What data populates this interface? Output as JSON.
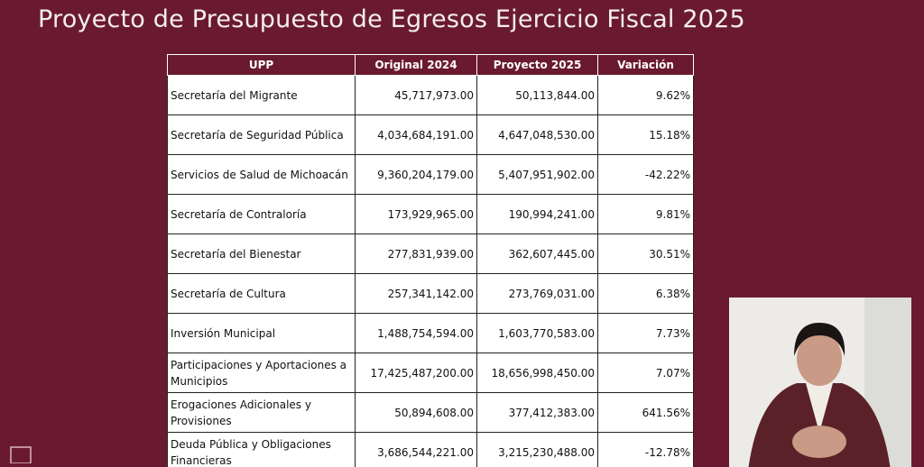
{
  "header": {
    "title": "Proyecto de Presupuesto de Egresos Ejercicio Fiscal 2025"
  },
  "table": {
    "columns": [
      "UPP",
      "Original 2024",
      "Proyecto 2025",
      "Variación"
    ],
    "rows": [
      [
        "Secretaría del Migrante",
        "45,717,973.00",
        "50,113,844.00",
        "9.62%"
      ],
      [
        "Secretaría de Seguridad Pública",
        "4,034,684,191.00",
        "4,647,048,530.00",
        "15.18%"
      ],
      [
        "Servicios de Salud de Michoacán",
        "9,360,204,179.00",
        "5,407,951,902.00",
        "-42.22%"
      ],
      [
        "Secretaría de Contraloría",
        "173,929,965.00",
        "190,994,241.00",
        "9.81%"
      ],
      [
        "Secretaría del Bienestar",
        "277,831,939.00",
        "362,607,445.00",
        "30.51%"
      ],
      [
        "Secretaría de Cultura",
        "257,341,142.00",
        "273,769,031.00",
        "6.38%"
      ],
      [
        "Inversión Municipal",
        "1,488,754,594.00",
        "1,603,770,583.00",
        "7.73%"
      ],
      [
        "Participaciones y Aportaciones a Municipios",
        "17,425,487,200.00",
        "18,656,998,450.00",
        "7.07%"
      ],
      [
        "Erogaciones Adicionales y Provisiones",
        "50,894,608.00",
        "377,412,383.00",
        "641.56%"
      ],
      [
        "Deuda Pública y Obligaciones Financieras",
        "3,686,544,221.00",
        "3,215,230,488.00",
        "-12.78%"
      ]
    ]
  }
}
